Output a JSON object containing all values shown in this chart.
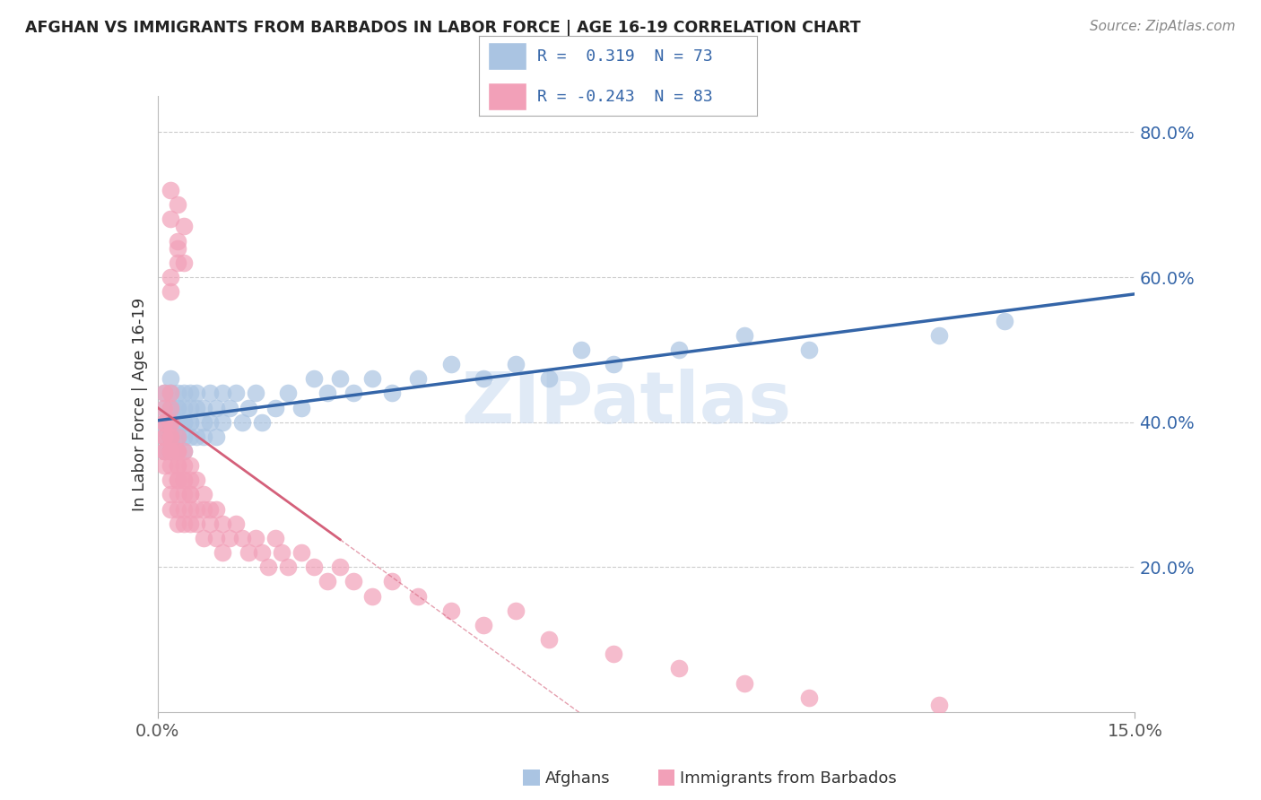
{
  "title": "AFGHAN VS IMMIGRANTS FROM BARBADOS IN LABOR FORCE | AGE 16-19 CORRELATION CHART",
  "source": "Source: ZipAtlas.com",
  "ylabel": "In Labor Force | Age 16-19",
  "xlim": [
    0.0,
    0.15
  ],
  "ylim": [
    0.0,
    0.85
  ],
  "ytick_vals_right": [
    0.2,
    0.4,
    0.6,
    0.8
  ],
  "ytick_labels_right": [
    "20.0%",
    "40.0%",
    "60.0%",
    "80.0%"
  ],
  "xtick_vals": [
    0.0,
    0.15
  ],
  "xtick_labels": [
    "0.0%",
    "15.0%"
  ],
  "color_afghan": "#aac4e2",
  "color_barbados": "#f2a0b8",
  "color_line_afghan": "#3465a8",
  "color_line_barbados": "#d4607a",
  "watermark": "ZIPatlas",
  "watermark_color": "#ccdcf0",
  "legend_r1_text": "R =  0.319  N = 73",
  "legend_r2_text": "R = -0.243  N = 83",
  "afghan_x": [
    0.001,
    0.001,
    0.001,
    0.001,
    0.001,
    0.001,
    0.002,
    0.002,
    0.002,
    0.002,
    0.002,
    0.002,
    0.002,
    0.002,
    0.002,
    0.003,
    0.003,
    0.003,
    0.003,
    0.003,
    0.003,
    0.003,
    0.003,
    0.004,
    0.004,
    0.004,
    0.004,
    0.004,
    0.004,
    0.005,
    0.005,
    0.005,
    0.005,
    0.005,
    0.006,
    0.006,
    0.006,
    0.007,
    0.007,
    0.007,
    0.008,
    0.008,
    0.009,
    0.009,
    0.01,
    0.01,
    0.011,
    0.012,
    0.013,
    0.014,
    0.015,
    0.016,
    0.018,
    0.02,
    0.022,
    0.024,
    0.026,
    0.028,
    0.03,
    0.033,
    0.036,
    0.04,
    0.045,
    0.05,
    0.055,
    0.06,
    0.065,
    0.07,
    0.08,
    0.09,
    0.1,
    0.12,
    0.13
  ],
  "afghan_y": [
    0.38,
    0.4,
    0.42,
    0.36,
    0.44,
    0.39,
    0.38,
    0.42,
    0.4,
    0.36,
    0.44,
    0.38,
    0.42,
    0.4,
    0.46,
    0.38,
    0.42,
    0.4,
    0.44,
    0.36,
    0.4,
    0.38,
    0.42,
    0.4,
    0.44,
    0.38,
    0.42,
    0.4,
    0.36,
    0.42,
    0.4,
    0.44,
    0.38,
    0.4,
    0.42,
    0.38,
    0.44,
    0.4,
    0.42,
    0.38,
    0.44,
    0.4,
    0.42,
    0.38,
    0.44,
    0.4,
    0.42,
    0.44,
    0.4,
    0.42,
    0.44,
    0.4,
    0.42,
    0.44,
    0.42,
    0.46,
    0.44,
    0.46,
    0.44,
    0.46,
    0.44,
    0.46,
    0.48,
    0.46,
    0.48,
    0.46,
    0.5,
    0.48,
    0.5,
    0.52,
    0.5,
    0.52,
    0.54
  ],
  "barbados_x": [
    0.001,
    0.001,
    0.001,
    0.001,
    0.001,
    0.001,
    0.001,
    0.001,
    0.001,
    0.002,
    0.002,
    0.002,
    0.002,
    0.002,
    0.002,
    0.002,
    0.002,
    0.002,
    0.002,
    0.002,
    0.002,
    0.003,
    0.003,
    0.003,
    0.003,
    0.003,
    0.003,
    0.003,
    0.003,
    0.003,
    0.003,
    0.004,
    0.004,
    0.004,
    0.004,
    0.004,
    0.004,
    0.004,
    0.005,
    0.005,
    0.005,
    0.005,
    0.005,
    0.005,
    0.006,
    0.006,
    0.006,
    0.007,
    0.007,
    0.007,
    0.008,
    0.008,
    0.009,
    0.009,
    0.01,
    0.01,
    0.011,
    0.012,
    0.013,
    0.014,
    0.015,
    0.016,
    0.017,
    0.018,
    0.019,
    0.02,
    0.022,
    0.024,
    0.026,
    0.028,
    0.03,
    0.033,
    0.036,
    0.04,
    0.045,
    0.05,
    0.055,
    0.06,
    0.07,
    0.08,
    0.09,
    0.1,
    0.12
  ],
  "barbados_y": [
    0.38,
    0.42,
    0.36,
    0.4,
    0.44,
    0.38,
    0.34,
    0.36,
    0.4,
    0.38,
    0.42,
    0.36,
    0.4,
    0.44,
    0.32,
    0.38,
    0.3,
    0.34,
    0.28,
    0.36,
    0.4,
    0.36,
    0.32,
    0.38,
    0.3,
    0.34,
    0.28,
    0.36,
    0.32,
    0.26,
    0.34,
    0.32,
    0.28,
    0.34,
    0.3,
    0.26,
    0.36,
    0.32,
    0.3,
    0.28,
    0.34,
    0.32,
    0.26,
    0.3,
    0.28,
    0.32,
    0.26,
    0.3,
    0.28,
    0.24,
    0.28,
    0.26,
    0.24,
    0.28,
    0.26,
    0.22,
    0.24,
    0.26,
    0.24,
    0.22,
    0.24,
    0.22,
    0.2,
    0.24,
    0.22,
    0.2,
    0.22,
    0.2,
    0.18,
    0.2,
    0.18,
    0.16,
    0.18,
    0.16,
    0.14,
    0.12,
    0.14,
    0.1,
    0.08,
    0.06,
    0.04,
    0.02,
    0.01
  ],
  "barbados_outliers_x": [
    0.002,
    0.002,
    0.003,
    0.003,
    0.004,
    0.004,
    0.002,
    0.003,
    0.002,
    0.003
  ],
  "barbados_outliers_y": [
    0.72,
    0.68,
    0.65,
    0.7,
    0.62,
    0.67,
    0.6,
    0.64,
    0.58,
    0.62
  ]
}
